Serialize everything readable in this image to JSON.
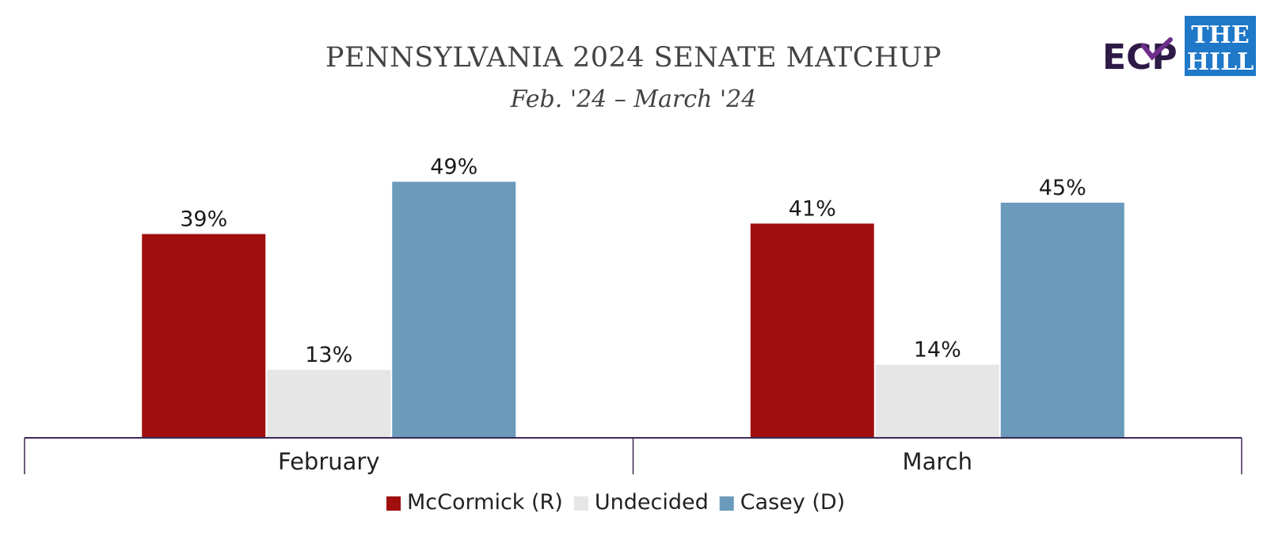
{
  "logos": {
    "ecp": "ECP",
    "hill_line1": "THE",
    "hill_line2": "HILL",
    "hill_bg": "#1f78c8",
    "ecp_color": "#2e1a47",
    "ecp_check_color": "#6d2e8c"
  },
  "chart_data": {
    "type": "bar",
    "title": "PENNSYLVANIA 2024 SENATE MATCHUP",
    "subtitle": "Feb. '24 – March '24",
    "categories": [
      "February",
      "March"
    ],
    "series": [
      {
        "name": "McCormick (R)",
        "color": "#a00f0d",
        "values": [
          39,
          41
        ],
        "labels": [
          "39%",
          "41%"
        ]
      },
      {
        "name": "Undecided",
        "color": "#e6e6e6",
        "values": [
          13,
          14
        ],
        "labels": [
          "13%",
          "14%"
        ]
      },
      {
        "name": "Casey (D)",
        "color": "#6b9aba",
        "values": [
          49,
          45
        ],
        "labels": [
          "49%",
          "45%"
        ]
      }
    ],
    "ylim": [
      0,
      55
    ],
    "grid": false,
    "legend": "bottom",
    "axis_color": "#3d2a55"
  }
}
